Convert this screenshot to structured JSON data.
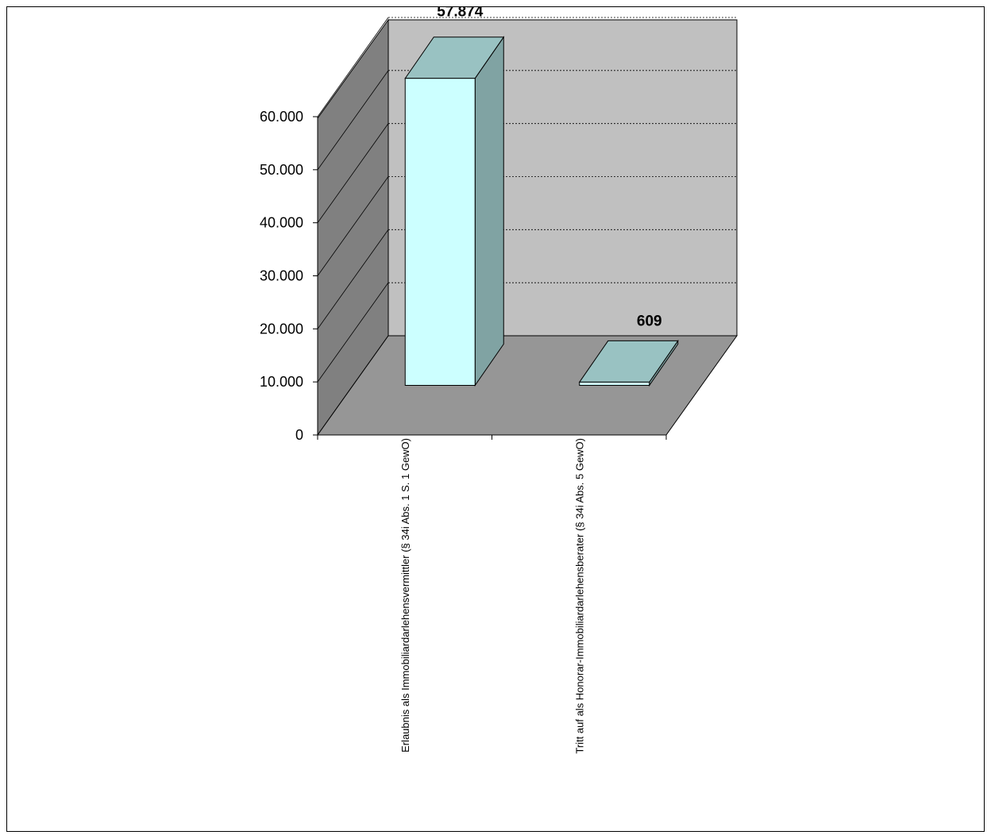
{
  "chart_data": {
    "type": "bar",
    "three_d": true,
    "categories": [
      "Erlaubnis als Immobiliardarlehensvermittler (§ 34i Abs. 1 S. 1 GewO)",
      "Tritt auf als Honorar-Immobiliardarlehensberater (§ 34i Abs. 5 GewO)"
    ],
    "values": [
      57874,
      609
    ],
    "value_labels": [
      "57.874",
      "609"
    ],
    "ylim": [
      0,
      60000
    ],
    "y_ticks": [
      0,
      10000,
      20000,
      30000,
      40000,
      50000,
      60000
    ],
    "y_tick_labels": [
      "0",
      "10.000",
      "20.000",
      "30.000",
      "40.000",
      "50.000",
      "60.000"
    ],
    "grid": true,
    "legend": "none",
    "colors": {
      "bar_front": "#ccffff",
      "bar_top": "#99c2c2",
      "bar_side": "#80a3a3",
      "back_wall": "#c0c0c0",
      "side_wall": "#808080",
      "floor": "#969696"
    }
  }
}
